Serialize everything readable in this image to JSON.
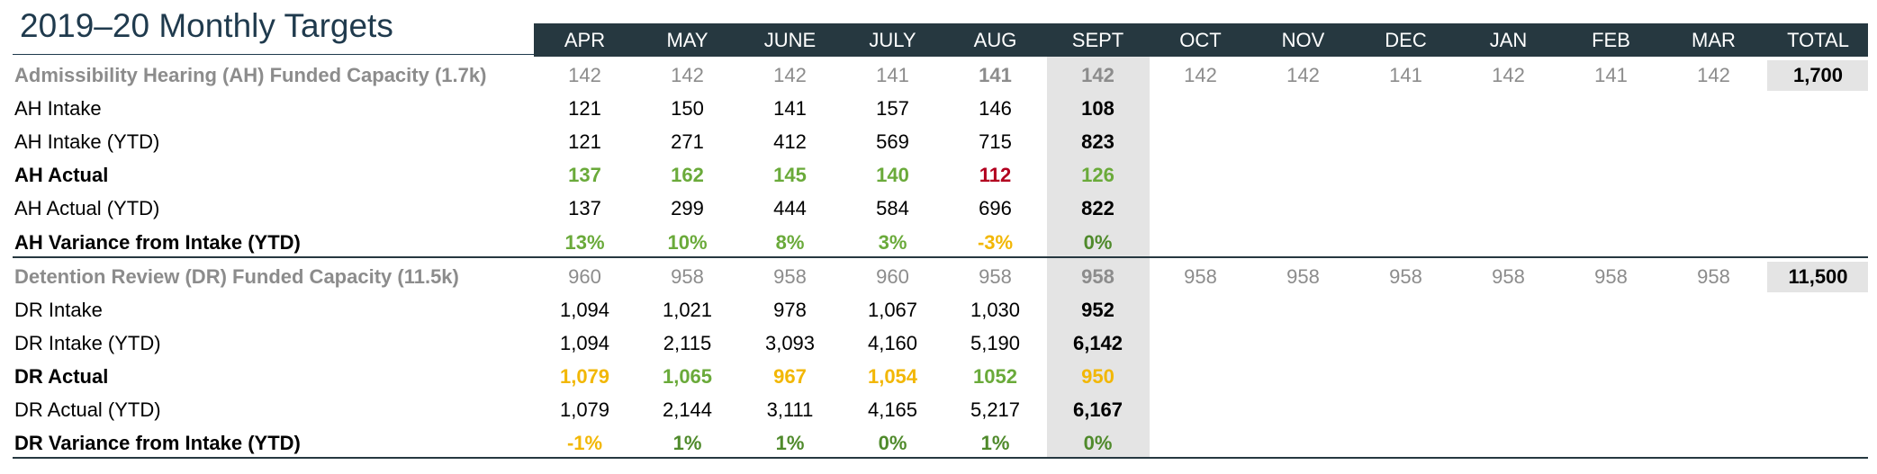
{
  "title": "2019–20 Monthly Targets",
  "columns": [
    "APR",
    "MAY",
    "JUNE",
    "JULY",
    "AUG",
    "SEPT",
    "OCT",
    "NOV",
    "DEC",
    "JAN",
    "FEB",
    "MAR",
    "TOTAL"
  ],
  "colors": {
    "header_bg": "#263840",
    "title": "#1f3a4d",
    "capacity_text": "#8c8c8c",
    "highlight_bg": "#e4e4e4",
    "green": "#6aaa3a",
    "dark_green": "#4f8a2b",
    "red": "#b2001f",
    "yellow": "#f2b705"
  },
  "ah": {
    "capacity": {
      "label": "Admissibility Hearing (AH) Funded Capacity (1.7k)",
      "values": [
        "142",
        "142",
        "142",
        "141",
        "141",
        "142",
        "142",
        "142",
        "141",
        "142",
        "141",
        "142"
      ],
      "total": "1,700"
    },
    "intake": {
      "label": "AH Intake",
      "values": [
        "121",
        "150",
        "141",
        "157",
        "146",
        "108"
      ]
    },
    "intake_ytd": {
      "label": "AH Intake (YTD)",
      "values": [
        "121",
        "271",
        "412",
        "569",
        "715",
        "823"
      ]
    },
    "actual": {
      "label": "AH Actual",
      "values": [
        "137",
        "162",
        "145",
        "140",
        "112",
        "126"
      ],
      "status": [
        "green",
        "green",
        "green",
        "green",
        "red",
        "green"
      ]
    },
    "actual_ytd": {
      "label": "AH Actual (YTD)",
      "values": [
        "137",
        "299",
        "444",
        "584",
        "696",
        "822"
      ]
    },
    "variance": {
      "label": "AH Variance from Intake (YTD)",
      "values": [
        "13%",
        "10%",
        "8%",
        "3%",
        "-3%",
        "0%"
      ],
      "status": [
        "green",
        "green",
        "green",
        "green",
        "yellow",
        "dark_green"
      ]
    }
  },
  "dr": {
    "capacity": {
      "label": "Detention Review (DR) Funded Capacity (11.5k)",
      "values": [
        "960",
        "958",
        "958",
        "960",
        "958",
        "958",
        "958",
        "958",
        "958",
        "958",
        "958",
        "958"
      ],
      "total": "11,500"
    },
    "intake": {
      "label": "DR Intake",
      "values": [
        "1,094",
        "1,021",
        "978",
        "1,067",
        "1,030",
        "952"
      ]
    },
    "intake_ytd": {
      "label": "DR Intake (YTD)",
      "values": [
        "1,094",
        "2,115",
        "3,093",
        "4,160",
        "5,190",
        "6,142"
      ]
    },
    "actual": {
      "label": "DR Actual",
      "values": [
        "1,079",
        "1,065",
        "967",
        "1,054",
        "1052",
        "950"
      ],
      "status": [
        "yellow",
        "green",
        "yellow",
        "yellow",
        "green",
        "yellow"
      ]
    },
    "actual_ytd": {
      "label": "DR Actual (YTD)",
      "values": [
        "1,079",
        "2,144",
        "3,111",
        "4,165",
        "5,217",
        "6,167"
      ]
    },
    "variance": {
      "label": "DR Variance from Intake (YTD)",
      "values": [
        "-1%",
        "1%",
        "1%",
        "0%",
        "1%",
        "0%"
      ],
      "status": [
        "yellow",
        "dark_green",
        "dark_green",
        "dark_green",
        "dark_green",
        "dark_green"
      ]
    }
  }
}
